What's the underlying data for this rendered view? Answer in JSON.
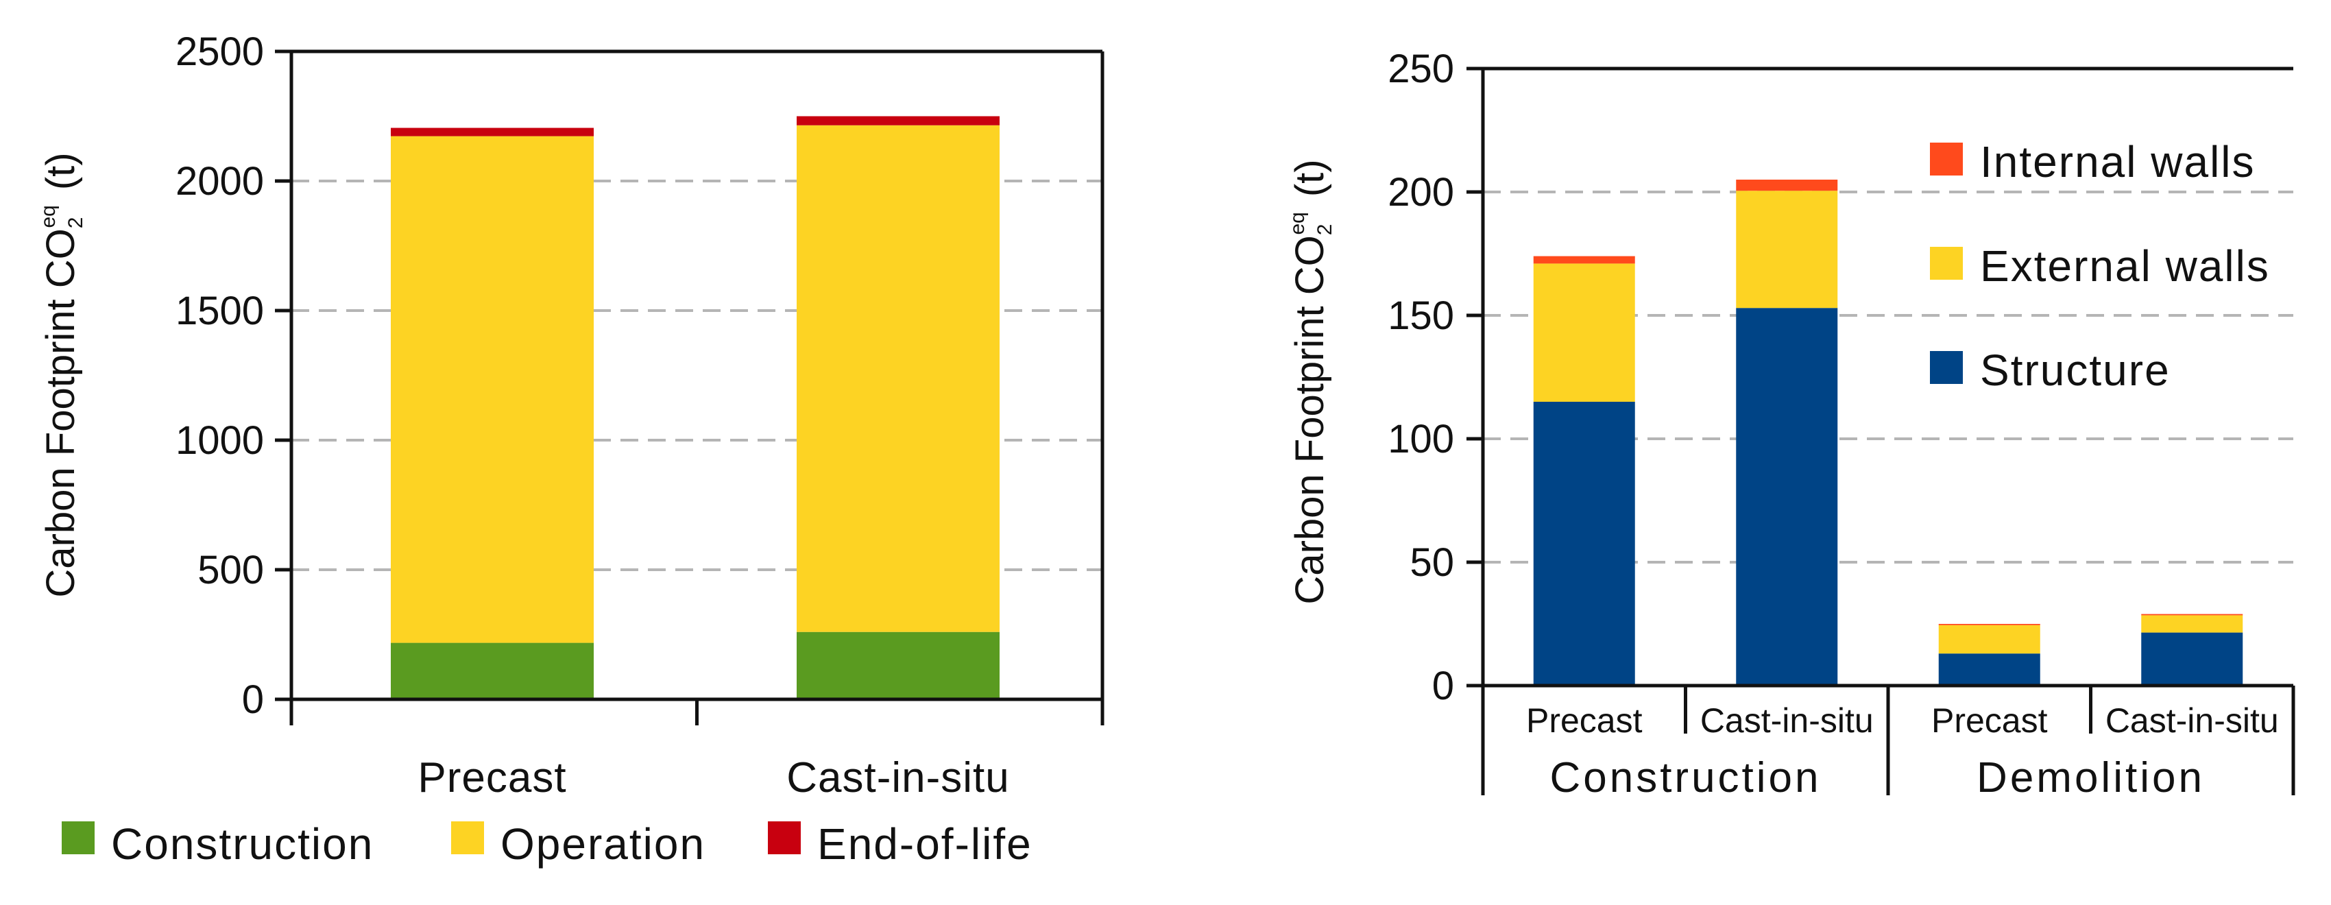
{
  "chart_data": [
    {
      "type": "bar",
      "stacked": true,
      "title": "",
      "xlabel": "",
      "ylabel_main": "Carbon Footprint CO",
      "ylabel_sub": "2",
      "ylabel_sup": "eq",
      "ylabel_unit": "(t)",
      "ylim": [
        0,
        2500
      ],
      "yticks": [
        0,
        500,
        1000,
        1500,
        2000,
        2500
      ],
      "grid": true,
      "categories": [
        "Precast",
        "Cast-in-situ"
      ],
      "series": [
        {
          "name": "Construction",
          "color": "#5a9b20",
          "values": [
            218,
            260
          ]
        },
        {
          "name": "Operation",
          "color": "#fdd323",
          "values": [
            1955,
            1955
          ]
        },
        {
          "name": "End-of-life",
          "color": "#c8000f",
          "values": [
            32,
            35
          ]
        }
      ],
      "legend_position": "bottom"
    },
    {
      "type": "bar",
      "stacked": true,
      "title": "",
      "xlabel": "",
      "ylabel_main": "Carbon Footprint  CO",
      "ylabel_sub": "2",
      "ylabel_sup": "eq",
      "ylabel_unit": "(t)",
      "ylim": [
        0,
        250
      ],
      "yticks": [
        0,
        50,
        100,
        150,
        200,
        250
      ],
      "grid": true,
      "categories": [
        "Precast",
        "Cast-in-situ",
        "Precast",
        "Cast-in-situ"
      ],
      "groups": [
        {
          "label": "Construction",
          "categories": [
            0,
            1
          ]
        },
        {
          "label": "Demolition",
          "categories": [
            2,
            3
          ]
        }
      ],
      "series": [
        {
          "name": "Structure",
          "color": "#004486",
          "values": [
            115,
            153,
            13,
            21.5
          ]
        },
        {
          "name": "External walls",
          "color": "#fdd323",
          "values": [
            56,
            47.5,
            11.5,
            7
          ]
        },
        {
          "name": "Internal walls",
          "color": "#ff4a1c",
          "values": [
            3,
            4.5,
            0.5,
            0.5
          ]
        }
      ],
      "legend_position": "top-right"
    }
  ]
}
